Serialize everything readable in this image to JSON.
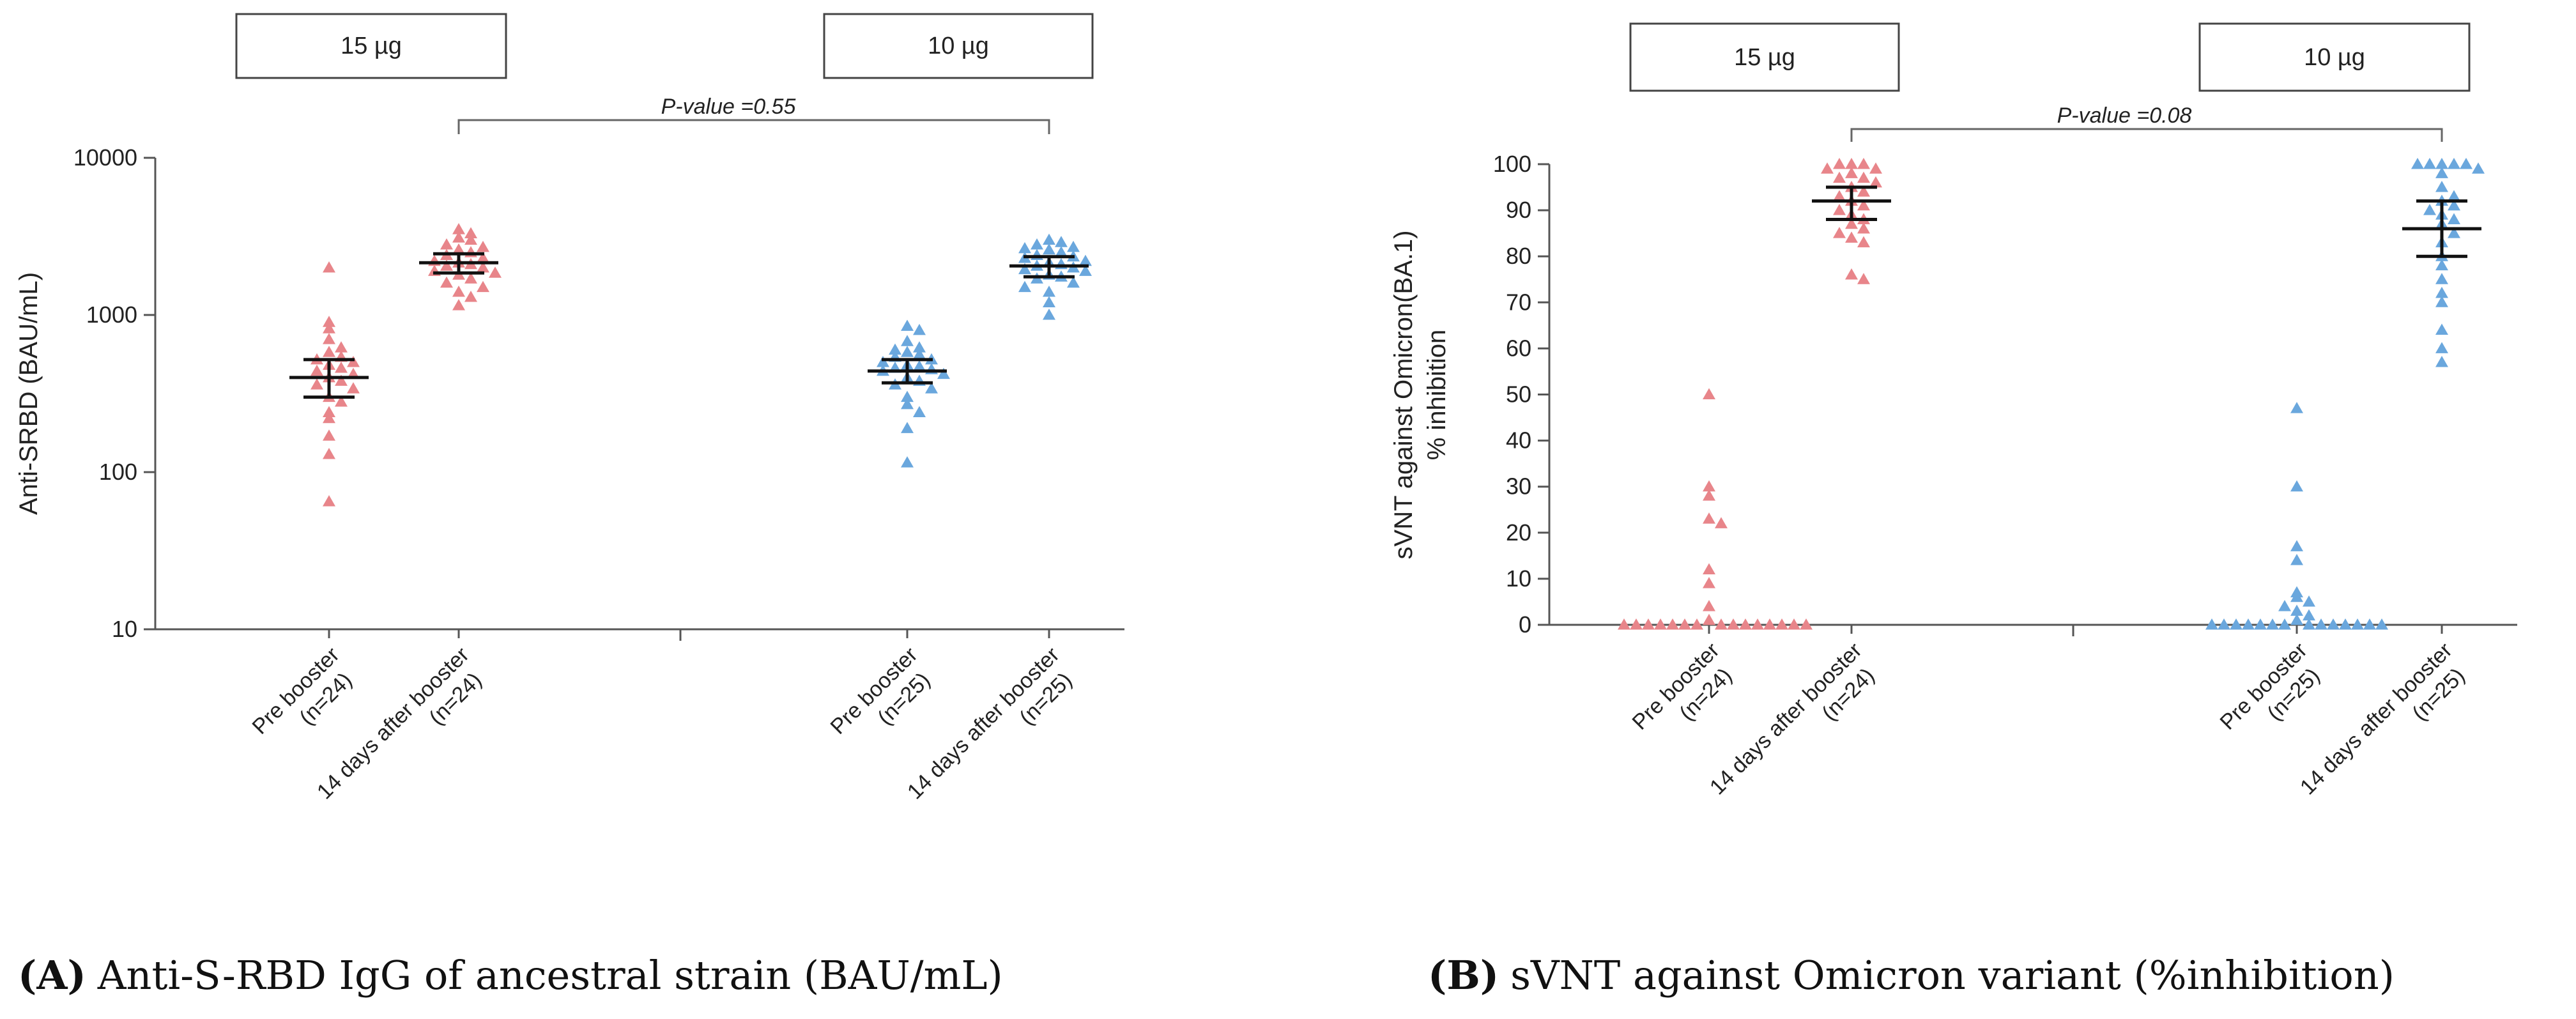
{
  "chart_data": [
    {
      "id": "A",
      "type": "scatter",
      "subtype": "dot plot with mean and 95% CI",
      "y_scale": "log",
      "ylabel": "Anti-SRBD (BAU/mL)",
      "ylim": [
        10,
        10000
      ],
      "y_ticks": [
        "10",
        "100",
        "1000",
        "10000"
      ],
      "y_tick_values": [
        10,
        100,
        1000,
        10000
      ],
      "dose_labels": [
        "15 µg",
        "10 µg"
      ],
      "pvalue_label": "P-value =0.55",
      "categories": [
        {
          "line1": "Pre booster",
          "line2": "(n=24)"
        },
        {
          "line1": "14 days after booster",
          "line2": "(n=24)"
        },
        {
          "line1": "Pre booster",
          "line2": "(n=25)"
        },
        {
          "line1": "14 days after booster",
          "line2": "(n=25)"
        }
      ],
      "series": [
        {
          "name": "15 µg Pre booster (n=24)",
          "color": "#e8858a",
          "values": [
            2000,
            900,
            820,
            700,
            620,
            580,
            540,
            520,
            500,
            480,
            460,
            440,
            420,
            400,
            380,
            360,
            340,
            300,
            280,
            240,
            220,
            170,
            130,
            65
          ],
          "center": 400,
          "ci": [
            300,
            520
          ]
        },
        {
          "name": "15 µg 14 days after booster (n=24)",
          "color": "#e8858a",
          "values": [
            3500,
            3300,
            3100,
            3000,
            2800,
            2700,
            2600,
            2500,
            2400,
            2300,
            2200,
            2150,
            2100,
            2050,
            2000,
            1900,
            1850,
            1800,
            1700,
            1600,
            1500,
            1400,
            1300,
            1150
          ],
          "center": 2150,
          "ci": [
            1850,
            2450
          ]
        },
        {
          "name": "10 µg Pre booster (n=25)",
          "color": "#6aa7dd",
          "values": [
            850,
            800,
            680,
            620,
            600,
            580,
            560,
            540,
            520,
            500,
            480,
            470,
            460,
            450,
            440,
            420,
            400,
            380,
            360,
            340,
            300,
            270,
            240,
            190,
            115
          ],
          "center": 440,
          "ci": [
            370,
            520
          ]
        },
        {
          "name": "10 µg 14 days after booster (n=25)",
          "color": "#6aa7dd",
          "values": [
            3000,
            2900,
            2800,
            2700,
            2650,
            2600,
            2500,
            2400,
            2350,
            2300,
            2200,
            2150,
            2100,
            2050,
            2000,
            1950,
            1900,
            1800,
            1750,
            1700,
            1600,
            1500,
            1400,
            1200,
            1000
          ],
          "center": 2050,
          "ci": [
            1750,
            2350
          ]
        }
      ],
      "caption_bold": "(A)",
      "caption": "Anti-S-RBD IgG of ancestral strain (BAU/mL)"
    },
    {
      "id": "B",
      "type": "scatter",
      "subtype": "dot plot with mean and 95% CI",
      "y_scale": "linear",
      "ylabel_line1": "sVNT against Omicron(BA.1)",
      "ylabel_line2": "% inhibition",
      "ylim": [
        0,
        100
      ],
      "y_ticks": [
        "0",
        "10",
        "20",
        "30",
        "40",
        "50",
        "60",
        "70",
        "80",
        "90",
        "100"
      ],
      "y_tick_values": [
        0,
        10,
        20,
        30,
        40,
        50,
        60,
        70,
        80,
        90,
        100
      ],
      "dose_labels": [
        "15 µg",
        "10 µg"
      ],
      "pvalue_label": "P-value =0.08",
      "categories": [
        {
          "line1": "Pre booster",
          "line2": "(n=24)"
        },
        {
          "line1": "14 days after booster",
          "line2": "(n=24)"
        },
        {
          "line1": "Pre booster",
          "line2": "(n=25)"
        },
        {
          "line1": "14 days after booster",
          "line2": "(n=25)"
        }
      ],
      "series": [
        {
          "name": "15 µg Pre booster (n=24)",
          "color": "#e8858a",
          "values": [
            50,
            30,
            28,
            23,
            22,
            12,
            9,
            4,
            1,
            0,
            0,
            0,
            0,
            0,
            0,
            0,
            0,
            0,
            0,
            0,
            0,
            0,
            0,
            0
          ],
          "center": null,
          "ci": null
        },
        {
          "name": "15 µg 14 days after booster (n=24)",
          "color": "#e8858a",
          "values": [
            100,
            100,
            100,
            99,
            99,
            98,
            97,
            97,
            96,
            95,
            94,
            93,
            92,
            91,
            90,
            89,
            88,
            87,
            86,
            85,
            84,
            83,
            76,
            75
          ],
          "center": 92,
          "ci": [
            88,
            95
          ]
        },
        {
          "name": "10 µg Pre booster (n=25)",
          "color": "#6aa7dd",
          "values": [
            47,
            30,
            17,
            14,
            7,
            6,
            5,
            4,
            3,
            2,
            1,
            0,
            0,
            0,
            0,
            0,
            0,
            0,
            0,
            0,
            0,
            0,
            0,
            0,
            0
          ],
          "center": null,
          "ci": null
        },
        {
          "name": "10 µg 14 days after booster (n=25)",
          "color": "#6aa7dd",
          "values": [
            100,
            100,
            100,
            100,
            100,
            99,
            98,
            95,
            93,
            92,
            91,
            90,
            89,
            88,
            87,
            85,
            83,
            80,
            78,
            75,
            72,
            70,
            64,
            60,
            57
          ],
          "center": 86,
          "ci": [
            80,
            92
          ]
        }
      ],
      "caption_bold": "(B)",
      "caption": "sVNT against Omicron variant (%inhibition)"
    }
  ]
}
